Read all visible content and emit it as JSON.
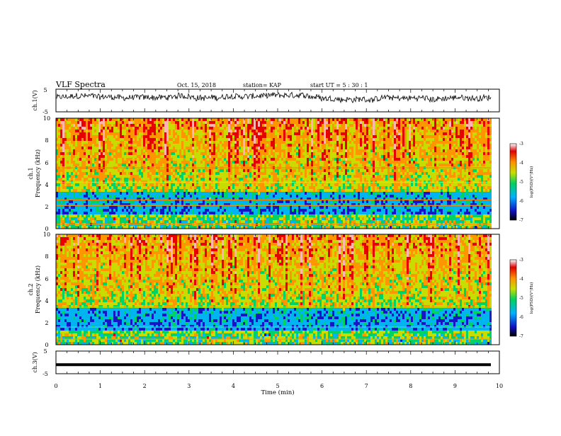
{
  "header": {
    "title": "VLF Spectra",
    "date": "Oct. 15, 2018",
    "station": "station= KAP",
    "start": "start  UT =   5 : 30 : 1"
  },
  "chart_data": [
    {
      "type": "line",
      "panel": "ch1-waveform",
      "ylabel": "ch.1(V)",
      "ylim": [
        -5,
        5
      ],
      "yticks": [
        "5",
        "-5"
      ],
      "xlim": [
        0,
        10
      ],
      "note": "noisy waveform oscillating roughly between 0 and 3 V"
    },
    {
      "type": "heatmap",
      "panel": "ch1-spectrogram",
      "ylabel": "ch.1 Frequency (kHz)",
      "ylabel_line1": "ch.1",
      "ylabel_line2": "Frequency (kHz)",
      "ylim": [
        0,
        10
      ],
      "yticks": [
        "0",
        "2",
        "4",
        "6",
        "8",
        "10"
      ],
      "xlim": [
        0,
        10
      ],
      "colorbar": {
        "label": "log(PSD)(V²/Hz)",
        "range": [
          -7,
          -3
        ],
        "ticks": [
          "-3",
          "-4",
          "-5",
          "-6",
          "-7"
        ]
      }
    },
    {
      "type": "heatmap",
      "panel": "ch2-spectrogram",
      "ylabel": "ch.2 Frequency (kHz)",
      "ylabel_line1": "ch.2",
      "ylabel_line2": "Frequency (kHz)",
      "ylim": [
        0,
        10
      ],
      "yticks": [
        "0",
        "2",
        "4",
        "6",
        "8",
        "10"
      ],
      "xlim": [
        0,
        10
      ],
      "colorbar": {
        "label": "log(PSD)(V²/Hz)",
        "range": [
          -7,
          -3
        ],
        "ticks": [
          "-3",
          "-4",
          "-5",
          "-6",
          "-7"
        ]
      }
    },
    {
      "type": "line",
      "panel": "ch3-waveform",
      "ylabel": "ch.3(V)",
      "ylim": [
        -5,
        5
      ],
      "yticks": [
        "5",
        "-5"
      ],
      "xlim": [
        0,
        10
      ],
      "level_v": -1,
      "xlabel": "Time (min)",
      "xticks": [
        "0",
        "1",
        "2",
        "3",
        "4",
        "5",
        "6",
        "7",
        "8",
        "9",
        "10"
      ]
    }
  ]
}
